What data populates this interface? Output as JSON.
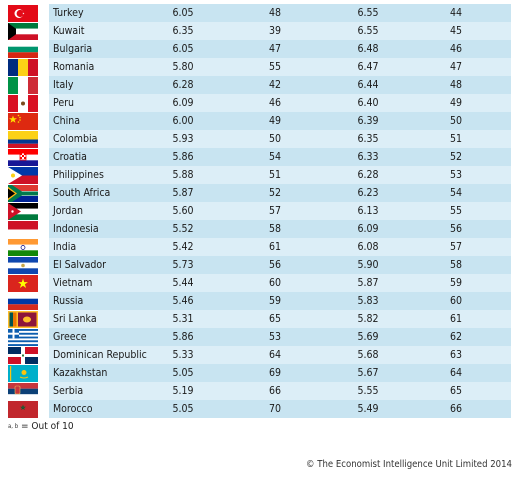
{
  "rows": [
    {
      "country": "Turkey",
      "v1": "6.05",
      "r1": "48",
      "v2": "6.55",
      "r2": "44",
      "flag": "turkey-flag"
    },
    {
      "country": "Kuwait",
      "v1": "6.35",
      "r1": "39",
      "v2": "6.55",
      "r2": "45",
      "flag": "kuwait-flag"
    },
    {
      "country": "Bulgaria",
      "v1": "6.05",
      "r1": "47",
      "v2": "6.48",
      "r2": "46",
      "flag": "bulgaria-flag"
    },
    {
      "country": "Romania",
      "v1": "5.80",
      "r1": "55",
      "v2": "6.47",
      "r2": "47",
      "flag": "romania-flag"
    },
    {
      "country": "Italy",
      "v1": "6.28",
      "r1": "42",
      "v2": "6.44",
      "r2": "48",
      "flag": "italy-flag"
    },
    {
      "country": "Peru",
      "v1": "6.09",
      "r1": "46",
      "v2": "6.40",
      "r2": "49",
      "flag": "peru-flag"
    },
    {
      "country": "China",
      "v1": "6.00",
      "r1": "49",
      "v2": "6.39",
      "r2": "50",
      "flag": "china-flag"
    },
    {
      "country": "Colombia",
      "v1": "5.93",
      "r1": "50",
      "v2": "6.35",
      "r2": "51",
      "flag": "colombia-flag"
    },
    {
      "country": "Croatia",
      "v1": "5.86",
      "r1": "54",
      "v2": "6.33",
      "r2": "52",
      "flag": "croatia-flag"
    },
    {
      "country": "Philippines",
      "v1": "5.88",
      "r1": "51",
      "v2": "6.28",
      "r2": "53",
      "flag": "philippines-flag"
    },
    {
      "country": "South Africa",
      "v1": "5.87",
      "r1": "52",
      "v2": "6.23",
      "r2": "54",
      "flag": "south-africa-flag"
    },
    {
      "country": "Jordan",
      "v1": "5.60",
      "r1": "57",
      "v2": "6.13",
      "r2": "55",
      "flag": "jordan-flag"
    },
    {
      "country": "Indonesia",
      "v1": "5.52",
      "r1": "58",
      "v2": "6.09",
      "r2": "56",
      "flag": "indonesia-flag"
    },
    {
      "country": "India",
      "v1": "5.42",
      "r1": "61",
      "v2": "6.08",
      "r2": "57",
      "flag": "india-flag"
    },
    {
      "country": "El Salvador",
      "v1": "5.73",
      "r1": "56",
      "v2": "5.90",
      "r2": "58",
      "flag": "el-salvador-flag"
    },
    {
      "country": "Vietnam",
      "v1": "5.44",
      "r1": "60",
      "v2": "5.87",
      "r2": "59",
      "flag": "vietnam-flag"
    },
    {
      "country": "Russia",
      "v1": "5.46",
      "r1": "59",
      "v2": "5.83",
      "r2": "60",
      "flag": "russia-flag"
    },
    {
      "country": "Sri Lanka",
      "v1": "5.31",
      "r1": "65",
      "v2": "5.82",
      "r2": "61",
      "flag": "sri-lanka-flag"
    },
    {
      "country": "Greece",
      "v1": "5.86",
      "r1": "53",
      "v2": "5.69",
      "r2": "62",
      "flag": "greece-flag"
    },
    {
      "country": "Dominican Republic",
      "v1": "5.33",
      "r1": "64",
      "v2": "5.68",
      "r2": "63",
      "flag": "dominican-republic-flag"
    },
    {
      "country": "Kazakhstan",
      "v1": "5.05",
      "r1": "69",
      "v2": "5.67",
      "r2": "64",
      "flag": "kazakhstan-flag"
    },
    {
      "country": "Serbia",
      "v1": "5.19",
      "r1": "66",
      "v2": "5.55",
      "r2": "65",
      "flag": "serbia-flag"
    },
    {
      "country": "Morocco",
      "v1": "5.05",
      "r1": "70",
      "v2": "5.49",
      "r2": "66",
      "flag": "morocco-flag"
    }
  ],
  "footnote": {
    "marker": "a, b",
    "text": "= Out of 10"
  },
  "copyright": "© The Economist Intelligence Unit Limited 2014"
}
